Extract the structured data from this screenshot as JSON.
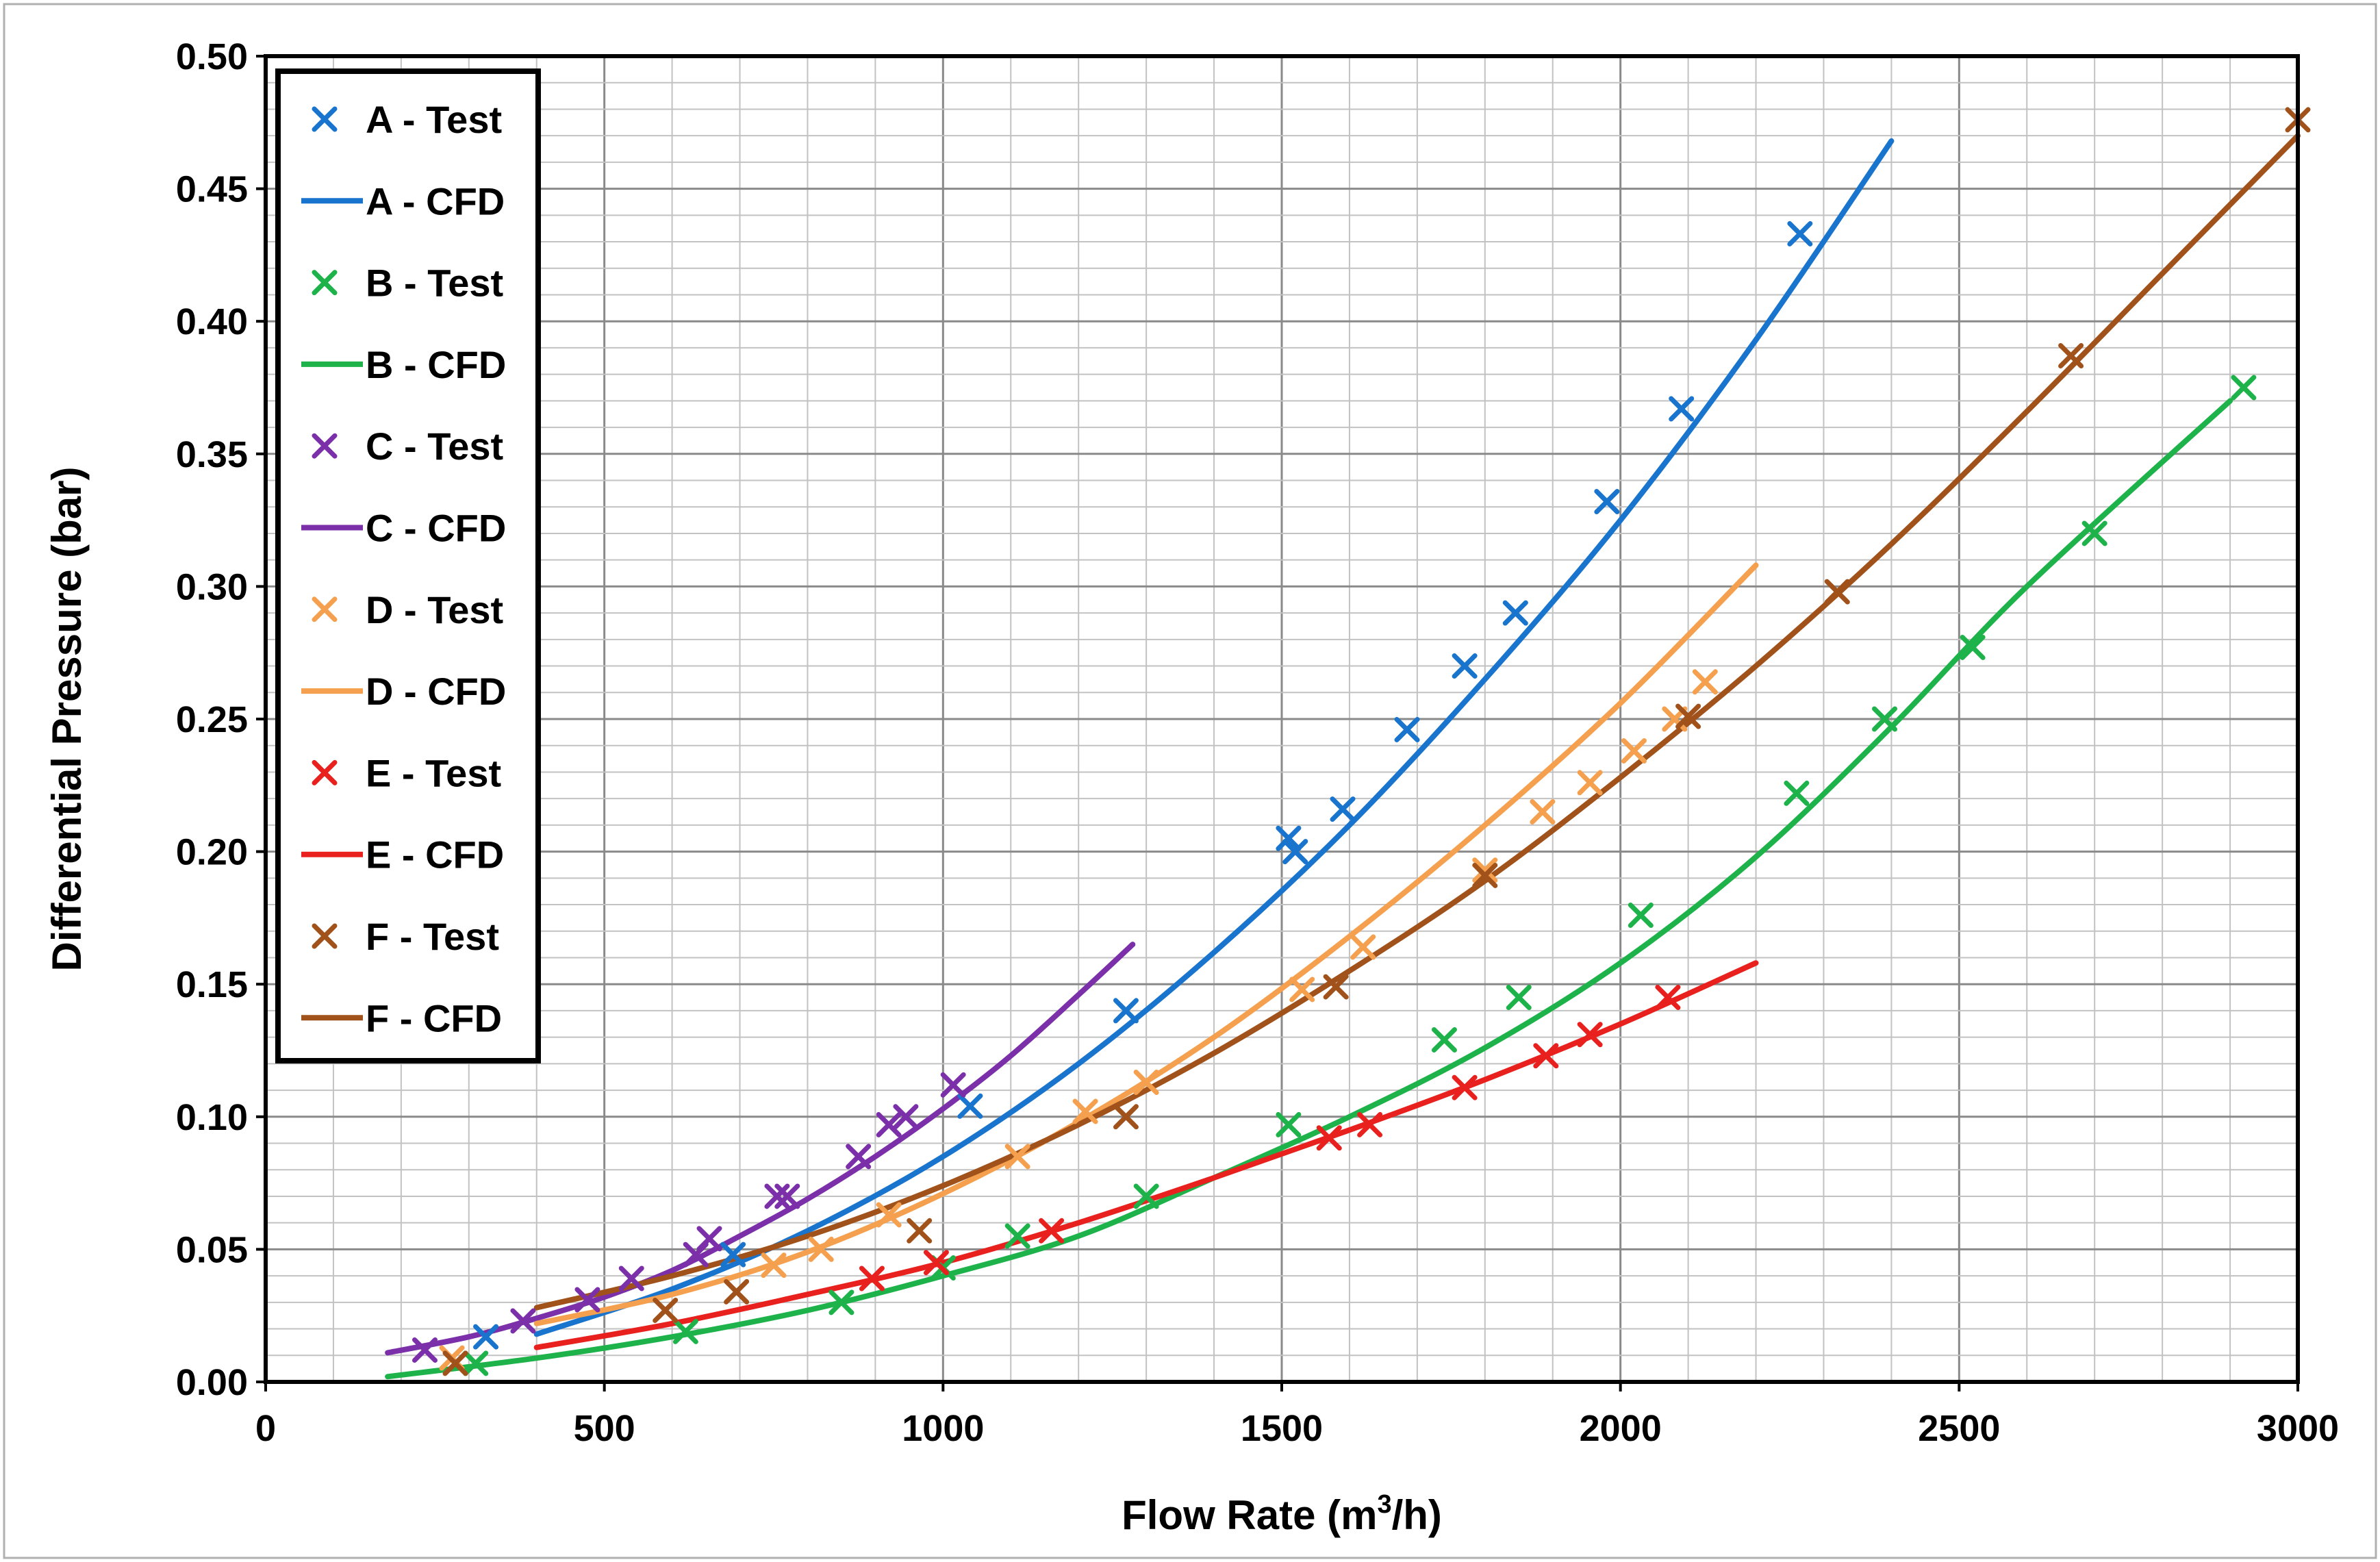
{
  "chart_data": {
    "type": "scatter",
    "title": "",
    "xlabel_main": "Flow Rate (m",
    "xlabel_sup": "3",
    "xlabel_tail": "/h)",
    "ylabel": "Differential Pressure (bar)",
    "xlim": [
      0,
      3000
    ],
    "ylim": [
      0,
      0.5
    ],
    "x_ticks": [
      0,
      500,
      1000,
      1500,
      2000,
      2500,
      3000
    ],
    "x_tick_labels": [
      "0",
      "500",
      "1000",
      "1500",
      "2000",
      "2500",
      "3000"
    ],
    "y_ticks": [
      0,
      0.05,
      0.1,
      0.15,
      0.2,
      0.25,
      0.3,
      0.35,
      0.4,
      0.45,
      0.5
    ],
    "y_tick_labels": [
      "0.00",
      "0.05",
      "0.10",
      "0.15",
      "0.20",
      "0.25",
      "0.30",
      "0.35",
      "0.40",
      "0.45",
      "0.50"
    ],
    "grid": true,
    "legend_position": "top-left",
    "series": [
      {
        "name": "A - Test",
        "kind": "marker",
        "color": "#1874CD",
        "points": [
          [
            325,
            0.017
          ],
          [
            690,
            0.048
          ],
          [
            1040,
            0.104
          ],
          [
            1270,
            0.14
          ],
          [
            1510,
            0.205
          ],
          [
            1520,
            0.2
          ],
          [
            1590,
            0.216
          ],
          [
            1685,
            0.246
          ],
          [
            1770,
            0.27
          ],
          [
            1845,
            0.29
          ],
          [
            1980,
            0.332
          ],
          [
            2090,
            0.367
          ],
          [
            2265,
            0.433
          ]
        ]
      },
      {
        "name": "A - CFD",
        "kind": "line",
        "color": "#1874CD",
        "points": [
          [
            400,
            0.018
          ],
          [
            600,
            0.035
          ],
          [
            800,
            0.057
          ],
          [
            1000,
            0.085
          ],
          [
            1200,
            0.12
          ],
          [
            1400,
            0.162
          ],
          [
            1600,
            0.21
          ],
          [
            1800,
            0.265
          ],
          [
            2000,
            0.325
          ],
          [
            2200,
            0.393
          ],
          [
            2400,
            0.468
          ]
        ]
      },
      {
        "name": "B - Test",
        "kind": "marker",
        "color": "#1DB34A",
        "points": [
          [
            310,
            0.007
          ],
          [
            620,
            0.019
          ],
          [
            850,
            0.03
          ],
          [
            1000,
            0.043
          ],
          [
            1110,
            0.055
          ],
          [
            1300,
            0.07
          ],
          [
            1510,
            0.097
          ],
          [
            1740,
            0.129
          ],
          [
            1850,
            0.145
          ],
          [
            2030,
            0.176
          ],
          [
            2260,
            0.222
          ],
          [
            2390,
            0.25
          ],
          [
            2520,
            0.277
          ],
          [
            2700,
            0.32
          ],
          [
            2920,
            0.375
          ]
        ]
      },
      {
        "name": "B - CFD",
        "kind": "line",
        "color": "#1DB34A",
        "points": [
          [
            180,
            0.002
          ],
          [
            400,
            0.009
          ],
          [
            600,
            0.017
          ],
          [
            800,
            0.027
          ],
          [
            1000,
            0.04
          ],
          [
            1200,
            0.055
          ],
          [
            1400,
            0.077
          ],
          [
            1600,
            0.1
          ],
          [
            1800,
            0.126
          ],
          [
            2000,
            0.158
          ],
          [
            2200,
            0.198
          ],
          [
            2400,
            0.247
          ],
          [
            2600,
            0.3
          ],
          [
            2900,
            0.37
          ]
        ]
      },
      {
        "name": "C - Test",
        "kind": "marker",
        "color": "#7B2FA8",
        "points": [
          [
            235,
            0.012
          ],
          [
            380,
            0.023
          ],
          [
            475,
            0.031
          ],
          [
            540,
            0.039
          ],
          [
            635,
            0.048
          ],
          [
            655,
            0.054
          ],
          [
            755,
            0.07
          ],
          [
            770,
            0.07
          ],
          [
            875,
            0.085
          ],
          [
            920,
            0.097
          ],
          [
            945,
            0.1
          ],
          [
            1015,
            0.112
          ]
        ]
      },
      {
        "name": "C - CFD",
        "kind": "line",
        "color": "#7B2FA8",
        "points": [
          [
            180,
            0.011
          ],
          [
            300,
            0.017
          ],
          [
            400,
            0.024
          ],
          [
            500,
            0.032
          ],
          [
            600,
            0.042
          ],
          [
            700,
            0.055
          ],
          [
            800,
            0.069
          ],
          [
            900,
            0.085
          ],
          [
            1000,
            0.103
          ],
          [
            1100,
            0.123
          ],
          [
            1200,
            0.146
          ],
          [
            1280,
            0.165
          ]
        ]
      },
      {
        "name": "D - Test",
        "kind": "marker",
        "color": "#F5A04E",
        "points": [
          [
            275,
            0.009
          ],
          [
            750,
            0.044
          ],
          [
            820,
            0.05
          ],
          [
            920,
            0.063
          ],
          [
            1110,
            0.085
          ],
          [
            1210,
            0.102
          ],
          [
            1300,
            0.113
          ],
          [
            1530,
            0.148
          ],
          [
            1620,
            0.164
          ],
          [
            1800,
            0.193
          ],
          [
            1885,
            0.215
          ],
          [
            1955,
            0.226
          ],
          [
            2020,
            0.238
          ],
          [
            2080,
            0.25
          ],
          [
            2125,
            0.264
          ]
        ]
      },
      {
        "name": "D - CFD",
        "kind": "line",
        "color": "#F5A04E",
        "points": [
          [
            400,
            0.022
          ],
          [
            600,
            0.033
          ],
          [
            800,
            0.049
          ],
          [
            1000,
            0.071
          ],
          [
            1200,
            0.098
          ],
          [
            1400,
            0.13
          ],
          [
            1600,
            0.168
          ],
          [
            1800,
            0.21
          ],
          [
            2000,
            0.256
          ],
          [
            2200,
            0.308
          ]
        ]
      },
      {
        "name": "E - Test",
        "kind": "marker",
        "color": "#E8211E",
        "points": [
          [
            895,
            0.039
          ],
          [
            990,
            0.045
          ],
          [
            1160,
            0.057
          ],
          [
            1570,
            0.092
          ],
          [
            1630,
            0.097
          ],
          [
            1770,
            0.111
          ],
          [
            1890,
            0.123
          ],
          [
            1955,
            0.131
          ],
          [
            2070,
            0.145
          ]
        ]
      },
      {
        "name": "E - CFD",
        "kind": "line",
        "color": "#E8211E",
        "points": [
          [
            400,
            0.013
          ],
          [
            600,
            0.022
          ],
          [
            800,
            0.033
          ],
          [
            1000,
            0.045
          ],
          [
            1200,
            0.06
          ],
          [
            1400,
            0.077
          ],
          [
            1600,
            0.095
          ],
          [
            1800,
            0.114
          ],
          [
            2000,
            0.135
          ],
          [
            2200,
            0.158
          ]
        ]
      },
      {
        "name": "F - Test",
        "kind": "marker",
        "color": "#A0521A",
        "points": [
          [
            280,
            0.007
          ],
          [
            590,
            0.027
          ],
          [
            695,
            0.034
          ],
          [
            965,
            0.057
          ],
          [
            1270,
            0.1
          ],
          [
            1580,
            0.149
          ],
          [
            1800,
            0.191
          ],
          [
            2100,
            0.251
          ],
          [
            2320,
            0.298
          ],
          [
            2665,
            0.387
          ],
          [
            3000,
            0.476
          ]
        ]
      },
      {
        "name": "F - CFD",
        "kind": "line",
        "color": "#A0521A",
        "points": [
          [
            400,
            0.028
          ],
          [
            600,
            0.04
          ],
          [
            800,
            0.055
          ],
          [
            1000,
            0.074
          ],
          [
            1200,
            0.097
          ],
          [
            1400,
            0.124
          ],
          [
            1600,
            0.155
          ],
          [
            1800,
            0.189
          ],
          [
            2000,
            0.228
          ],
          [
            2200,
            0.27
          ],
          [
            2400,
            0.316
          ],
          [
            2600,
            0.366
          ],
          [
            2800,
            0.418
          ],
          [
            3000,
            0.47
          ]
        ]
      }
    ]
  }
}
